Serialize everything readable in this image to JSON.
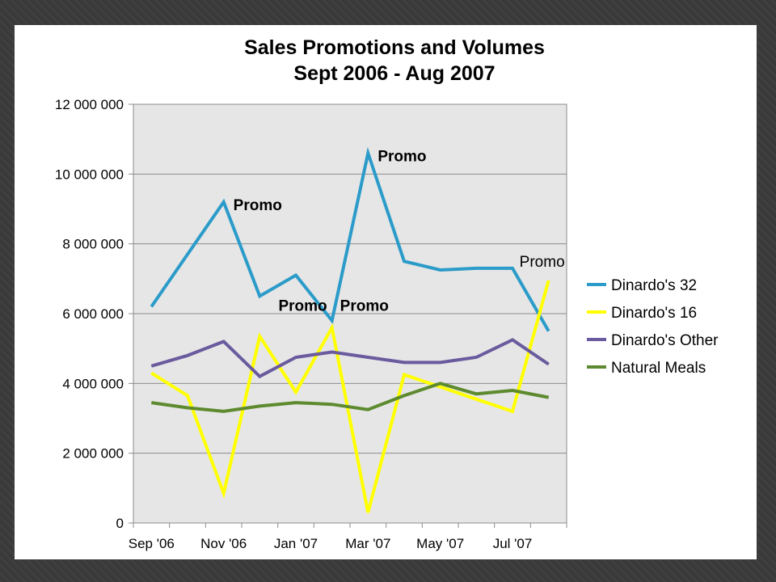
{
  "chart_data": {
    "type": "line",
    "title_line1": "Sales Promotions and Volumes",
    "title_line2": "Sept 2006 - Aug 2007",
    "ylim": [
      0,
      12000000
    ],
    "y_ticks": [
      0,
      2000000,
      4000000,
      6000000,
      8000000,
      10000000,
      12000000
    ],
    "y_tick_labels": [
      "0",
      "2 000 000",
      "4 000 000",
      "6 000 000",
      "8 000 000",
      "10 000 000",
      "12 000 000"
    ],
    "categories": [
      "Sep '06",
      "Oct '06",
      "Nov '06",
      "Dec '06",
      "Jan '07",
      "Feb '07",
      "Mar '07",
      "Apr '07",
      "May '07",
      "Jun '07",
      "Jul '07",
      "Aug '07"
    ],
    "x_tick_labels": [
      "Sep '06",
      "Nov '06",
      "Jan '07",
      "Mar '07",
      "May '07",
      "Jul '07"
    ],
    "grid": true,
    "legend_position": "right",
    "series": [
      {
        "name": "Dinardo's 32",
        "color": "#2b9bc9",
        "values": [
          6200000,
          7700000,
          9200000,
          6500000,
          7100000,
          5800000,
          10600000,
          7500000,
          7250000,
          7300000,
          7300000,
          5500000
        ]
      },
      {
        "name": "Dinardo's 16",
        "color": "#ffff00",
        "values": [
          4300000,
          3650000,
          850000,
          5350000,
          3750000,
          5600000,
          300000,
          4250000,
          3900000,
          3550000,
          3200000,
          6950000
        ]
      },
      {
        "name": "Dinardo's Other",
        "color": "#6a5a9e",
        "values": [
          4500000,
          4800000,
          5200000,
          4200000,
          4750000,
          4900000,
          4750000,
          4600000,
          4600000,
          4750000,
          5250000,
          4550000
        ]
      },
      {
        "name": "Natural Meals",
        "color": "#5d8a2e",
        "values": [
          3450000,
          3300000,
          3200000,
          3350000,
          3450000,
          3400000,
          3250000,
          3650000,
          4000000,
          3700000,
          3800000,
          3600000
        ]
      }
    ],
    "annotations": [
      {
        "text": "Promo",
        "bold": true,
        "category_index": 2,
        "value": 9200000,
        "anchor": "right"
      },
      {
        "text": "Promo",
        "bold": true,
        "category_index": 6,
        "value": 10600000,
        "anchor": "right"
      },
      {
        "text": "Promo",
        "bold": true,
        "category_index": 5,
        "value": 5600000,
        "anchor": "left"
      },
      {
        "text": "Promo",
        "bold": true,
        "category_index": 5,
        "value": 5600000,
        "anchor": "right"
      },
      {
        "text": "Promo",
        "bold": false,
        "category_index": 11,
        "value": 6950000,
        "anchor": "above"
      }
    ]
  }
}
